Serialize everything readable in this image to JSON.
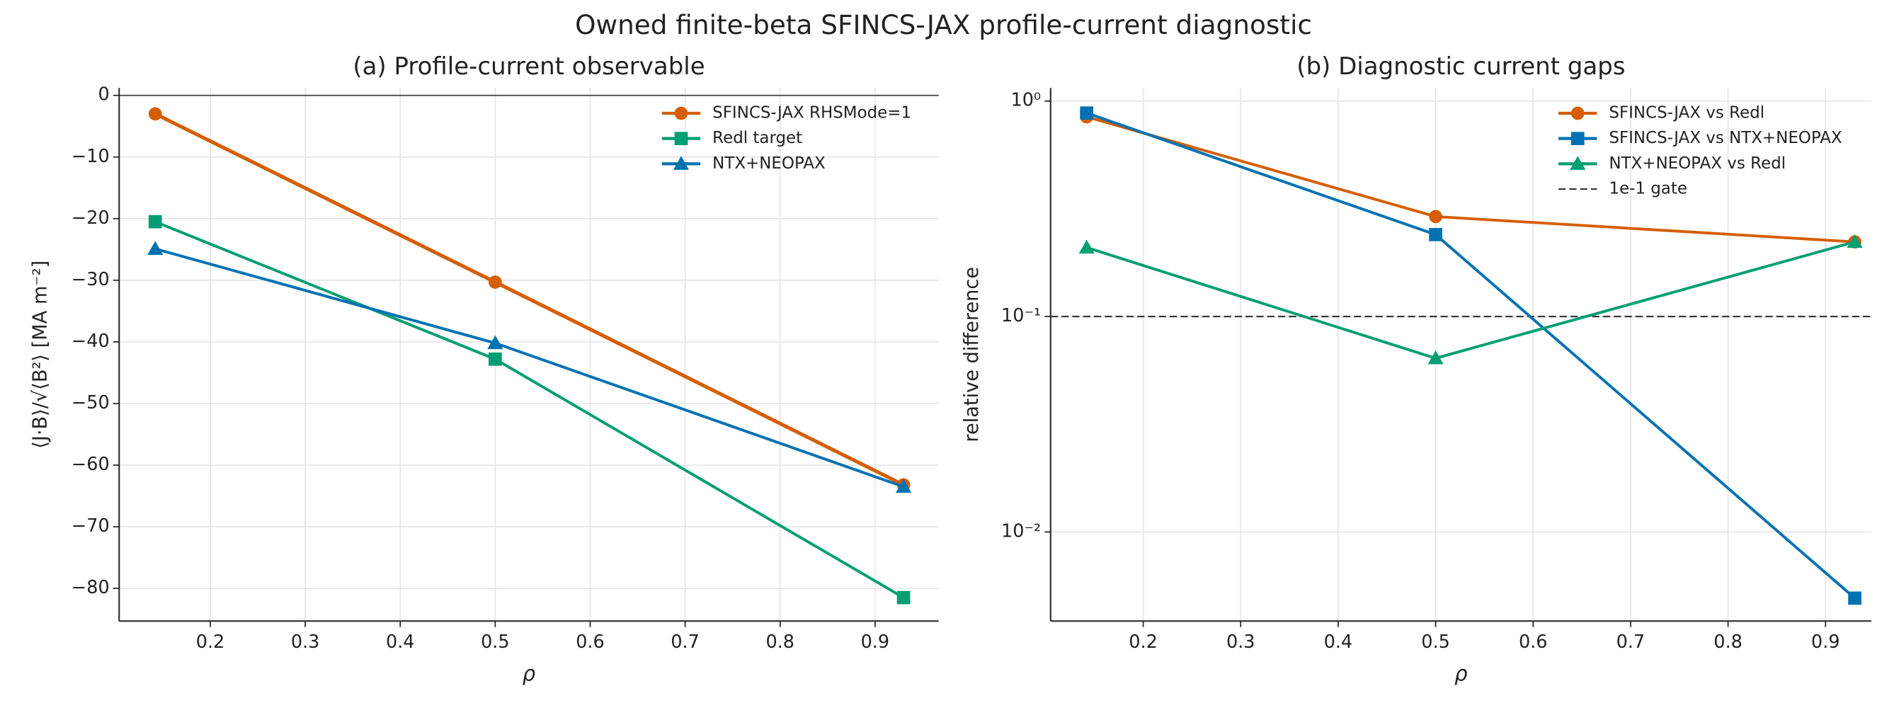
{
  "title": "Owned finite-beta SFINCS-JAX profile-current diagnostic",
  "chart_data": [
    {
      "type": "line",
      "title": "(a) Profile-current observable",
      "x_label": "ρ",
      "y_label": "⟨J·B⟩/√⟨B²⟩ [MA m⁻²]",
      "x": [
        0.142,
        0.5,
        0.93
      ],
      "series": [
        {
          "name": "SFINCS-JAX RHSMode=1",
          "color": "#d55e00",
          "marker": "circle",
          "values": [
            -3.0,
            -30.3,
            -63.2
          ]
        },
        {
          "name": "Redl target",
          "color": "#009e73",
          "marker": "square",
          "values": [
            -20.5,
            -42.8,
            -81.5
          ]
        },
        {
          "name": "NTX+NEOPAX",
          "color": "#0072b2",
          "marker": "triangle",
          "values": [
            -24.9,
            -40.2,
            -63.5
          ]
        }
      ],
      "xlim": [
        0.104,
        0.967
      ],
      "ylim": [
        -85.3,
        1.2
      ],
      "xticks": [
        0.2,
        0.3,
        0.4,
        0.5,
        0.6,
        0.7,
        0.8,
        0.9
      ],
      "yticks": [
        0,
        {
          "value": -10,
          "label": "−10"
        },
        {
          "value": -20,
          "label": "−20"
        },
        {
          "value": -30,
          "label": "−30"
        },
        {
          "value": -40,
          "label": "−40"
        },
        {
          "value": -50,
          "label": "−50"
        },
        {
          "value": -60,
          "label": "−60"
        },
        {
          "value": -70,
          "label": "−70"
        },
        {
          "value": -80,
          "label": "−80"
        }
      ],
      "grid": true,
      "zero_line": true,
      "log_y": false,
      "legend": "upper right"
    },
    {
      "type": "line",
      "title": "(b) Diagnostic current gaps",
      "x_label": "ρ",
      "y_label": "relative difference",
      "x": [
        0.142,
        0.5,
        0.93
      ],
      "series": [
        {
          "name": "SFINCS-JAX vs Redl",
          "color": "#d55e00",
          "marker": "circle",
          "values": [
            0.845,
            0.291,
            0.222
          ]
        },
        {
          "name": "SFINCS-JAX vs NTX+NEOPAX",
          "color": "#0072b2",
          "marker": "square",
          "values": [
            0.88,
            0.24,
            0.00493
          ]
        },
        {
          "name": "NTX+NEOPAX vs Redl",
          "color": "#009e73",
          "marker": "triangle",
          "values": [
            0.209,
            0.064,
            0.222
          ]
        }
      ],
      "reference_line": {
        "name": "1e-1 gate",
        "value": 0.1,
        "color": "#333333"
      },
      "xlim": [
        0.105,
        0.947
      ],
      "ylim": [
        0.00386,
        1.15
      ],
      "xticks": [
        0.2,
        0.3,
        0.4,
        0.5,
        0.6,
        0.7,
        0.8,
        0.9
      ],
      "yticks": [
        {
          "value": 1,
          "label": "10⁰"
        },
        {
          "value": 0.1,
          "label": "10⁻¹"
        },
        {
          "value": 0.01,
          "label": "10⁻²"
        }
      ],
      "grid": true,
      "zero_line": false,
      "log_y": true,
      "legend": "upper right"
    }
  ]
}
